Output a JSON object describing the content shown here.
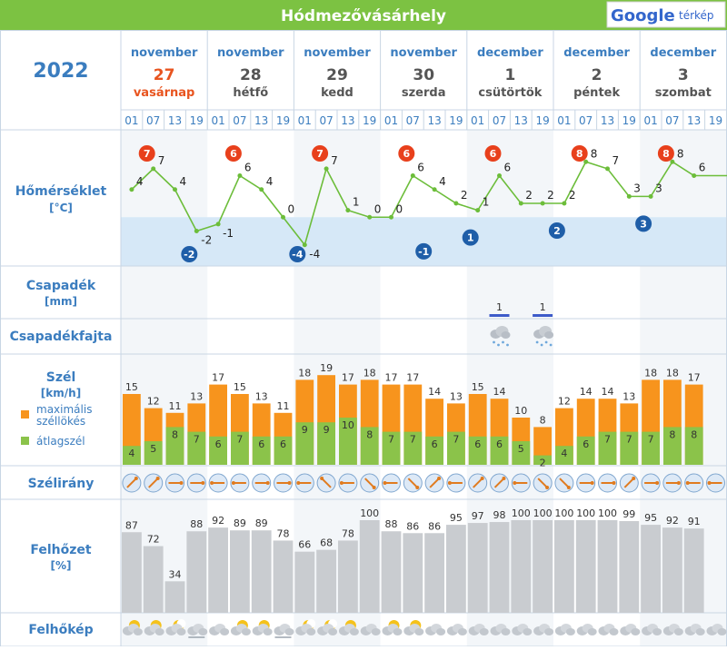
{
  "header": {
    "city": "Hódmezővásárhely",
    "map_link_brand": "Google",
    "map_link_suffix": "térkép"
  },
  "year": "2022",
  "days": [
    {
      "month": "november",
      "day": "27",
      "weekday": "vasárnap",
      "weekend": true
    },
    {
      "month": "november",
      "day": "28",
      "weekday": "hétfő",
      "weekend": false
    },
    {
      "month": "november",
      "day": "29",
      "weekday": "kedd",
      "weekend": false
    },
    {
      "month": "november",
      "day": "30",
      "weekday": "szerda",
      "weekend": false
    },
    {
      "month": "december",
      "day": "1",
      "weekday": "csütörtök",
      "weekend": false
    },
    {
      "month": "december",
      "day": "2",
      "weekday": "péntek",
      "weekend": false
    },
    {
      "month": "december",
      "day": "3",
      "weekday": "szombat",
      "weekend": false
    }
  ],
  "hours": [
    "01",
    "07",
    "13",
    "19"
  ],
  "rows": {
    "temperature": {
      "label": "Hőmérséklet",
      "unit": "[°C]"
    },
    "precipitation": {
      "label": "Csapadék",
      "unit": "[mm]"
    },
    "precip_type": {
      "label": "Csapadékfajta"
    },
    "wind": {
      "label": "Szél",
      "unit": "[km/h]",
      "legend_gust": "maximális széllökés",
      "legend_avg": "átlagszél"
    },
    "wind_dir": {
      "label": "Szélirány"
    },
    "cloud": {
      "label": "Felhőzet",
      "unit": "[%]"
    },
    "cloud_img": {
      "label": "Felhőkép"
    }
  },
  "colors": {
    "header_bg": "#7cc242",
    "title_blue": "#3b7dbf",
    "weekend_red": "#e8541f",
    "grid_line": "#c8d6e4",
    "temp_line": "#6cbd3a",
    "max_badge": "#e8401c",
    "min_badge": "#1f5ea8",
    "below_zero": "#d6e8f7",
    "gust": "#f7941d",
    "avg": "#8bc34a",
    "cloud_bar": "#c9ccd0",
    "precip_bar": "#3d5bc9"
  },
  "chart_data": [
    {
      "type": "line",
      "title": "Hőmérséklet",
      "ylabel": "[°C]",
      "x": [
        "27 01",
        "27 07",
        "27 13",
        "27 19",
        "28 01",
        "28 07",
        "28 13",
        "28 19",
        "29 01",
        "29 07",
        "29 13",
        "29 19",
        "30 01",
        "30 07",
        "30 13",
        "30 19",
        "1 01",
        "1 07",
        "1 13",
        "1 19",
        "2 01",
        "2 07",
        "2 13",
        "2 19",
        "3 01",
        "3 07",
        "3 13",
        "3 19"
      ],
      "values": [
        4,
        7,
        4,
        -2,
        -1,
        6,
        4,
        0,
        -4,
        7,
        1,
        0,
        0,
        6,
        4,
        2,
        1,
        6,
        2,
        2,
        2,
        8,
        7,
        3,
        3,
        8,
        6,
        null
      ],
      "daily_max": [
        7,
        6,
        7,
        6,
        6,
        8,
        8
      ],
      "daily_min": [
        -2,
        null,
        -4,
        -1,
        1,
        2,
        3
      ]
    },
    {
      "type": "bar",
      "title": "Csapadék",
      "ylabel": "[mm]",
      "values": [
        null,
        null,
        null,
        null,
        null,
        null,
        null,
        null,
        null,
        null,
        null,
        null,
        null,
        null,
        null,
        null,
        null,
        1,
        null,
        1,
        null,
        null,
        null,
        null,
        null,
        null,
        null,
        null
      ],
      "precip_icons_at": [
        17,
        19
      ]
    },
    {
      "type": "bar",
      "title": "Szél",
      "ylabel": "[km/h]",
      "series": [
        {
          "name": "maximális széllökés",
          "values": [
            15,
            12,
            11,
            13,
            17,
            15,
            13,
            11,
            18,
            19,
            17,
            18,
            17,
            17,
            14,
            13,
            15,
            14,
            10,
            8,
            12,
            14,
            14,
            13,
            18,
            18,
            17,
            null
          ]
        },
        {
          "name": "átlagszél",
          "values": [
            4,
            5,
            8,
            7,
            6,
            7,
            6,
            6,
            9,
            9,
            10,
            8,
            7,
            7,
            6,
            7,
            6,
            6,
            5,
            2,
            4,
            6,
            7,
            7,
            7,
            8,
            8,
            null
          ]
        }
      ]
    },
    {
      "type": "bar",
      "title": "Felhőzet",
      "ylabel": "[%]",
      "values": [
        87,
        72,
        34,
        88,
        92,
        89,
        89,
        78,
        66,
        68,
        78,
        100,
        88,
        86,
        86,
        95,
        97,
        98,
        100,
        100,
        100,
        100,
        100,
        99,
        95,
        92,
        91,
        null
      ],
      "ylim": [
        0,
        100
      ]
    }
  ],
  "wind_directions": [
    "NE",
    "NE",
    "E",
    "E",
    "W",
    "W",
    "E",
    "E",
    "W",
    "NW",
    "W",
    "SE",
    "W",
    "SE",
    "NE",
    "W",
    "NE",
    "NE",
    "W",
    "SE",
    "SE",
    "E",
    "E",
    "NE",
    "E",
    "E",
    "W",
    "W"
  ],
  "cloud_icons": [
    "partly-cloudy-sun",
    "partly-cloudy-sun",
    "moon-cloud",
    "cloud-fog",
    "cloud",
    "partly-cloudy-sun",
    "partly-cloudy-sun",
    "cloud-fog",
    "moon-cloud",
    "moon-cloud",
    "partly-cloudy-sun",
    "cloud",
    "partly-cloudy-sun",
    "partly-cloudy-sun",
    "cloud",
    "cloud",
    "cloud",
    "cloud",
    "cloud",
    "cloud",
    "cloud",
    "cloud",
    "cloud",
    "cloud",
    "cloud",
    "cloud",
    "cloud",
    "cloud"
  ]
}
